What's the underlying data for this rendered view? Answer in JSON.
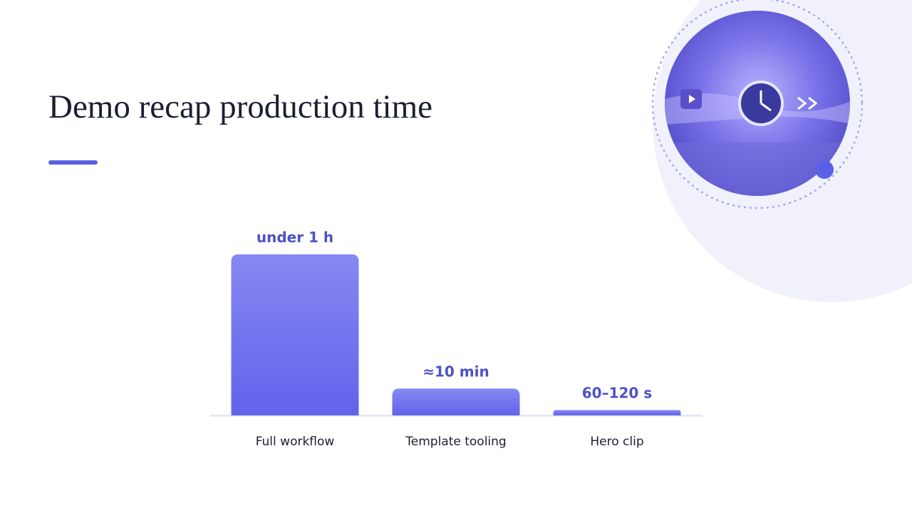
{
  "chart_data": {
    "type": "bar",
    "title": "Demo recap production time",
    "categories": [
      "Full workflow",
      "Template tooling",
      "Hero clip"
    ],
    "values": [
      60,
      10,
      2
    ],
    "value_labels": [
      "under 1 h",
      "≈10 min",
      "60–120 s"
    ],
    "color": "#6a6cf0"
  }
}
